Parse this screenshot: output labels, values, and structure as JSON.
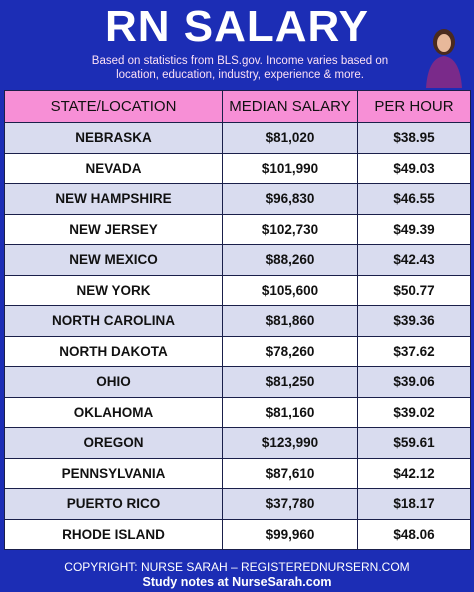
{
  "header": {
    "title": "RN SALARY",
    "subtitle": [
      "Based on statistics from BLS.gov. Income varies based on",
      "location, education, industry, experience & more."
    ]
  },
  "table": {
    "columns": [
      "STATE/LOCATION",
      "MEDIAN SALARY",
      "PER HOUR"
    ],
    "rows": [
      [
        "NEBRASKA",
        "$81,020",
        "$38.95"
      ],
      [
        "NEVADA",
        "$101,990",
        "$49.03"
      ],
      [
        "NEW HAMPSHIRE",
        "$96,830",
        "$46.55"
      ],
      [
        "NEW JERSEY",
        "$102,730",
        "$49.39"
      ],
      [
        "NEW MEXICO",
        "$88,260",
        "$42.43"
      ],
      [
        "NEW YORK",
        "$105,600",
        "$50.77"
      ],
      [
        "NORTH CAROLINA",
        "$81,860",
        "$39.36"
      ],
      [
        "NORTH DAKOTA",
        "$78,260",
        "$37.62"
      ],
      [
        "OHIO",
        "$81,250",
        "$39.06"
      ],
      [
        "OKLAHOMA",
        "$81,160",
        "$39.02"
      ],
      [
        "OREGON",
        "$123,990",
        "$59.61"
      ],
      [
        "PENNSYLVANIA",
        "$87,610",
        "$42.12"
      ],
      [
        "PUERTO RICO",
        "$37,780",
        "$18.17"
      ],
      [
        "RHODE ISLAND",
        "$99,960",
        "$48.06"
      ]
    ]
  },
  "footer": {
    "copyright": "COPYRIGHT: NURSE SARAH – REGISTEREDNURSERN.COM",
    "study_notes": "Study notes at NurseSarah.com"
  }
}
